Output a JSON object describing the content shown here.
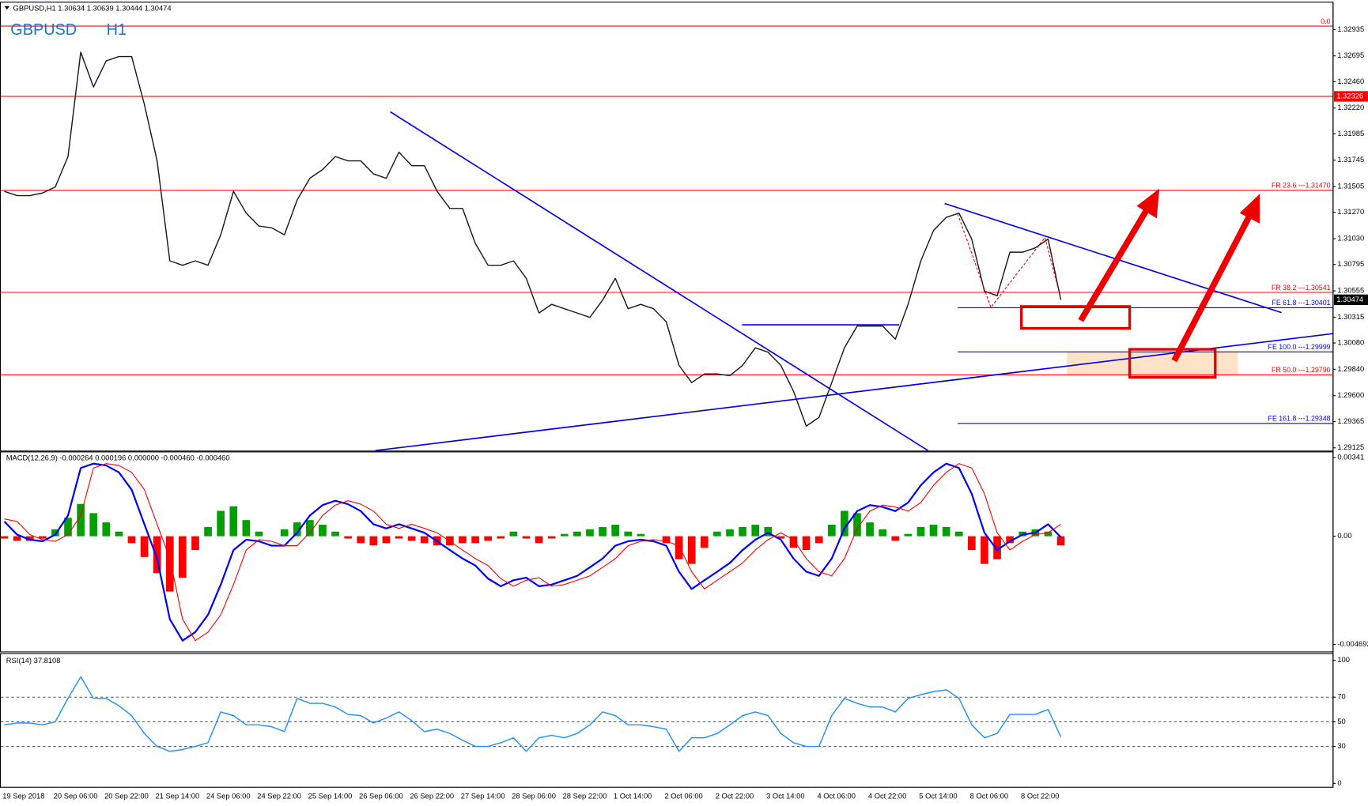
{
  "chart_data": [
    {
      "type": "line",
      "title": "GBPUSD,H1  1.30634 1.30639 1.30444 1.30474",
      "symbol": "GBPUSD",
      "timeframe": "H1",
      "categories": [
        "19 Sep 2018",
        null,
        null,
        null,
        "20 Sep 06:00",
        null,
        null,
        null,
        "20 Sep 22:00",
        null,
        null,
        null,
        "21 Sep 14:00",
        null,
        null,
        null,
        "24 Sep 06:00",
        null,
        null,
        null,
        "24 Sep 22:00",
        null,
        null,
        null,
        "25 Sep 14:00",
        null,
        null,
        null,
        "26 Sep 06:00",
        null,
        null,
        null,
        "26 Sep 22:00",
        null,
        null,
        null,
        "27 Sep 14:00",
        null,
        null,
        null,
        "28 Sep 06:00",
        null,
        null,
        null,
        "28 Sep 22:00",
        null,
        null,
        null,
        "1 Oct 14:00",
        null,
        null,
        null,
        "2 Oct 06:00",
        null,
        null,
        null,
        "2 Oct 22:00",
        null,
        null,
        null,
        "3 Oct 14:00",
        null,
        null,
        null,
        "4 Oct 06:00",
        null,
        null,
        null,
        "4 Oct 22:00",
        null,
        null,
        null,
        "5 Oct 14:00",
        null,
        null,
        null,
        "8 Oct 06:00",
        null,
        null,
        null,
        "8 Oct 22:00",
        null,
        null,
        null
      ],
      "values": [
        1.31461,
        1.31422,
        1.31422,
        1.31446,
        1.31501,
        1.31778,
        1.32729,
        1.32412,
        1.32649,
        1.32689,
        1.32689,
        1.32253,
        1.31739,
        1.30828,
        1.30788,
        1.30828,
        1.30788,
        1.31065,
        1.31461,
        1.31263,
        1.31145,
        1.31129,
        1.31065,
        1.31382,
        1.3158,
        1.31659,
        1.31778,
        1.31739,
        1.31739,
        1.3162,
        1.3158,
        1.31818,
        1.31695,
        1.31695,
        1.31461,
        1.31305,
        1.31305,
        1.30986,
        1.30788,
        1.30788,
        1.30828,
        1.30669,
        1.30353,
        1.30432,
        1.30392,
        1.30353,
        1.30313,
        1.30471,
        1.30669,
        1.30392,
        1.30432,
        1.30392,
        1.30273,
        1.29877,
        1.29719,
        1.29798,
        1.29798,
        1.29782,
        1.29877,
        1.30036,
        1.29996,
        1.29877,
        1.2964,
        1.29323,
        1.29402,
        1.29719,
        1.30036,
        1.30234,
        1.30234,
        1.30234,
        1.30115,
        1.30432,
        1.30828,
        1.31105,
        1.31224,
        1.31263,
        1.31026,
        1.30551,
        1.30511,
        1.30907,
        1.30907,
        1.30947,
        1.31026,
        1.30474
      ],
      "color": "#1a1a1a",
      "ylim": [
        1.291,
        1.3318
      ],
      "yticks": [
        1.32935,
        1.32695,
        {
          "value": 1.3246,
          "label": "1.32460"
        },
        {
          "value": 1.3222,
          "label": "1.32220"
        },
        1.31985,
        1.31745,
        1.31505,
        {
          "value": 1.3127,
          "label": "1.31270"
        },
        {
          "value": 1.3103,
          "label": "1.31030"
        },
        1.30795,
        1.30555,
        1.30315,
        {
          "value": 1.3008,
          "label": "1.30080"
        },
        {
          "value": 1.2984,
          "label": "1.29840"
        },
        {
          "value": 1.296,
          "label": "1.29600"
        },
        1.29365,
        1.29125
      ],
      "retracement_color": "#ff0000",
      "retracements": [
        {
          "label": "0.0",
          "value": 1.32966
        },
        {
          "label": "FR 23.6 ---1.31470",
          "value": 1.3147
        },
        {
          "label": "FR 38.2 ---1.30541",
          "value": 1.30541
        },
        {
          "label": "FR 50.0 ---1.29790",
          "value": 1.2979
        }
      ],
      "expansion_color": "#0000ff",
      "expansions": [
        {
          "label": "FE 61.8 ---1.30401",
          "value": 1.30401
        },
        {
          "label": "FE 100.0 ---1.29999",
          "value": 1.29999
        },
        {
          "label": "FE 161.8 ---1.29348",
          "value": 1.29348
        }
      ],
      "price_tags": [
        {
          "value": 1.32326,
          "label": "1.32326",
          "color": "#ff0000",
          "line": true
        },
        {
          "value": 1.30474,
          "label": "1.30474",
          "color": "#000000",
          "line": false
        }
      ]
    },
    {
      "type": "macd",
      "title": "MACD(12,26,9) -0.000264 0.000196 0.000000 -0.000460 -0.000460",
      "ylim": [
        -0.005,
        0.00364
      ],
      "yticks": [
        0.00341,
        {
          "value": 0,
          "label": "0.00"
        },
        -0.004692
      ],
      "histogram": {
        "color": "#00a000",
        "negative_color": "#ff0000",
        "values": [
          -0.0001,
          -0.0002,
          -0.0002,
          -0.0001,
          0.0003,
          0.0008,
          0.0014,
          0.001,
          0.0006,
          0.0002,
          -0.0003,
          -0.0009,
          -0.0016,
          -0.0024,
          -0.0018,
          -0.0006,
          0.0004,
          0.0011,
          0.0013,
          0.0007,
          0.0002,
          0.0,
          0.0003,
          0.0006,
          0.0007,
          0.0005,
          0.0002,
          -0.0001,
          -0.0003,
          -0.0004,
          -0.0003,
          -0.0001,
          -0.0002,
          -0.0003,
          -0.0004,
          -0.0004,
          -0.0003,
          -0.0003,
          -0.0002,
          -0.0001,
          0.0002,
          -0.0001,
          -0.0003,
          -0.0001,
          0.0001,
          0.0002,
          0.0003,
          0.0004,
          0.0005,
          0.0002,
          0.0001,
          0.0,
          -0.0003,
          -0.001,
          -0.0012,
          -0.0005,
          0.0002,
          0.0003,
          0.0004,
          0.0005,
          0.0004,
          -0.0001,
          -0.0005,
          -0.0006,
          -0.0003,
          0.0005,
          0.0011,
          0.001,
          0.0006,
          0.0003,
          -0.0002,
          0.0001,
          0.0004,
          0.0005,
          0.0004,
          0.0002,
          -0.0006,
          -0.0012,
          -0.001,
          -0.0003,
          0.0002,
          0.0003,
          0.0002,
          -0.0004
        ]
      },
      "series": [
        {
          "color": "#0000ff",
          "values": [
            0.00064,
            7e-05,
            -0.00015,
            -0.00022,
            7e-05,
            0.0009,
            0.00296,
            0.00315,
            0.00307,
            0.00277,
            0.00202,
            0.00052,
            -0.00097,
            -0.0036,
            -0.00453,
            -0.00416,
            -0.00341,
            -0.0021,
            -0.0006,
            -0.00015,
            -0.00022,
            -0.00041,
            -0.00041,
            0.00015,
            0.0009,
            0.00135,
            0.00154,
            0.00139,
            0.00109,
            0.00052,
            0.00034,
            0.00052,
            0.00034,
            0.00015,
            -0.00022,
            -0.0006,
            -0.00097,
            -0.00127,
            -0.00184,
            -0.00217,
            -0.00191,
            -0.0018,
            -0.00217,
            -0.0021,
            -0.00191,
            -0.00172,
            -0.00135,
            -0.00097,
            -0.00041,
            -0.00022,
            -0.00015,
            -0.00022,
            -0.00041,
            -0.00154,
            -0.00229,
            -0.00191,
            -0.00154,
            -0.00116,
            -0.0006,
            -0.00015,
            0.00015,
            -0.00015,
            -0.00097,
            -0.00154,
            -0.00172,
            -0.00097,
            0.00034,
            0.00109,
            0.00135,
            0.00127,
            0.00109,
            0.00146,
            0.00221,
            0.00277,
            0.00315,
            0.00296,
            0.00184,
            0.00015,
            -0.0006,
            -0.00022,
            7e-05,
            0.00015,
            0.00052,
            -4e-05
          ]
        },
        {
          "color": "#ff0000",
          "values": [
            0.00075,
            0.00064,
            7e-05,
            -0.00015,
            -0.00022,
            7e-05,
            0.0009,
            0.00296,
            0.00315,
            0.00307,
            0.00277,
            0.00202,
            0.00052,
            -0.00097,
            -0.0036,
            -0.00453,
            -0.00416,
            -0.00341,
            -0.0021,
            -0.0006,
            -0.00015,
            -0.00022,
            -0.00041,
            -0.00041,
            0.00015,
            0.0009,
            0.00135,
            0.00154,
            0.00139,
            0.00109,
            0.00052,
            0.00034,
            0.00052,
            0.00034,
            0.00015,
            -0.00022,
            -0.0006,
            -0.00097,
            -0.00127,
            -0.00184,
            -0.00217,
            -0.00191,
            -0.0018,
            -0.00217,
            -0.0021,
            -0.00191,
            -0.00172,
            -0.00135,
            -0.00097,
            -0.00041,
            -0.00022,
            -0.00015,
            -0.00022,
            -0.00041,
            -0.00154,
            -0.00229,
            -0.00191,
            -0.00154,
            -0.00116,
            -0.0006,
            -0.00015,
            0.00015,
            -0.00015,
            -0.00097,
            -0.00154,
            -0.00172,
            -0.00097,
            0.00034,
            0.00109,
            0.00135,
            0.00127,
            0.00109,
            0.00146,
            0.00221,
            0.00277,
            0.00315,
            0.00296,
            0.00184,
            0.00015,
            -0.0006,
            -0.00022,
            7e-05,
            0.00015,
            0.00052
          ]
        }
      ]
    },
    {
      "type": "line",
      "title": "RSI(14) 37.8108",
      "color": "#1e90ff",
      "ylim": [
        -2.8,
        105
      ],
      "yticks": [
        100,
        70,
        50,
        30,
        0
      ],
      "levels": [
        70,
        50,
        30
      ],
      "values": [
        47.5,
        49,
        49,
        47.5,
        50,
        69,
        86.5,
        69,
        69,
        63,
        55,
        40.5,
        30,
        26,
        27.5,
        30,
        33,
        58,
        55,
        47.5,
        47.5,
        46,
        42,
        69,
        65,
        65,
        62,
        56,
        55,
        49,
        53,
        58,
        51,
        42,
        44,
        40.5,
        35,
        30,
        30,
        33,
        37,
        26,
        37,
        39,
        37,
        40.5,
        47.5,
        58,
        55,
        47.5,
        47.5,
        46,
        44,
        26,
        37,
        37,
        40.5,
        47.5,
        55,
        58,
        55,
        40.5,
        33,
        30,
        30,
        55,
        69,
        65,
        62,
        62,
        58,
        69,
        72,
        74.5,
        76,
        69,
        47.5,
        37,
        40.5,
        56,
        56,
        56,
        60,
        37.8108
      ]
    }
  ]
}
